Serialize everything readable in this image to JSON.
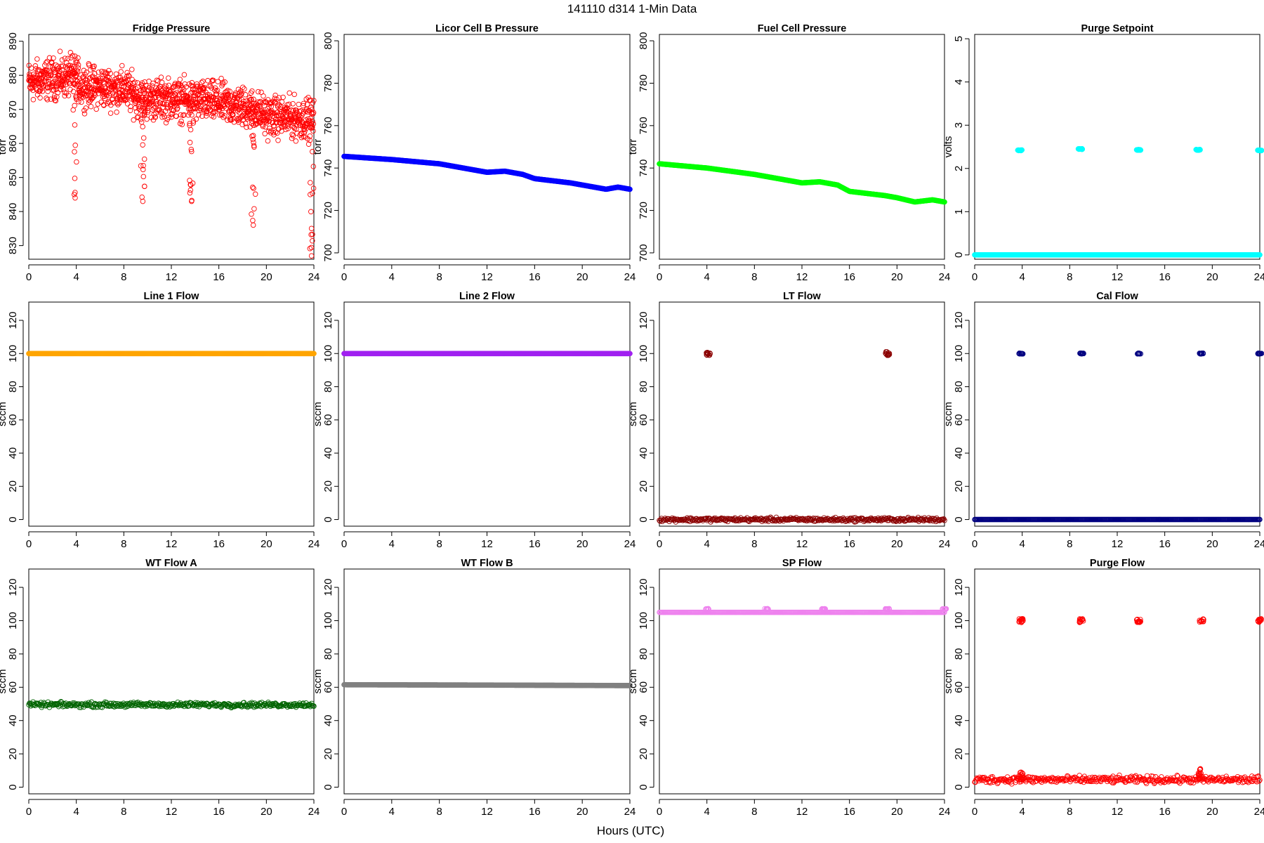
{
  "figure": {
    "title": "141110    d314    1-Min Data",
    "xlabel": "Hours (UTC)"
  },
  "chart_data": [
    {
      "type": "scatter",
      "title": "Fridge Pressure",
      "ylabel": "torr",
      "color": "#ff0000",
      "marker": "open-circle",
      "xlim": [
        0,
        24
      ],
      "xticks": [
        0,
        4,
        8,
        12,
        16,
        20,
        24
      ],
      "ylim": [
        826,
        892
      ],
      "yticks": [
        830,
        840,
        850,
        860,
        870,
        880,
        890
      ],
      "series": [
        {
          "pattern": "noise",
          "x": [
            0,
            4,
            4.3,
            8,
            9.5,
            12,
            16,
            19,
            20,
            24
          ],
          "y": [
            878,
            880,
            877,
            876,
            873,
            873,
            872,
            870,
            868,
            867
          ],
          "spread": 5,
          "dips": [
            {
              "x": 3.9,
              "y": 844
            },
            {
              "x": 9.6,
              "y": 843
            },
            {
              "x": 13.7,
              "y": 843
            },
            {
              "x": 18.9,
              "y": 836
            },
            {
              "x": 23.8,
              "y": 827
            }
          ]
        }
      ]
    },
    {
      "type": "scatter",
      "title": "Licor Cell B Pressure",
      "ylabel": "torr",
      "color": "#0000ff",
      "marker": "filled-circle",
      "xlim": [
        0,
        24
      ],
      "xticks": [
        0,
        4,
        8,
        12,
        16,
        20,
        24
      ],
      "ylim": [
        697,
        803
      ],
      "yticks": [
        700,
        720,
        740,
        760,
        780,
        800
      ],
      "series": [
        {
          "pattern": "line",
          "x": [
            0,
            4,
            8,
            10,
            12,
            13.5,
            15,
            16,
            17.5,
            19,
            20,
            22,
            23,
            24
          ],
          "y": [
            745.5,
            744,
            742,
            740,
            738,
            738.5,
            737,
            735,
            734,
            733,
            732,
            730,
            731,
            730
          ]
        }
      ]
    },
    {
      "type": "scatter",
      "title": "Fuel Cell Pressure",
      "ylabel": "torr",
      "color": "#00ff00",
      "marker": "filled-circle",
      "xlim": [
        0,
        24
      ],
      "xticks": [
        0,
        4,
        8,
        12,
        16,
        20,
        24
      ],
      "ylim": [
        697,
        803
      ],
      "yticks": [
        700,
        720,
        740,
        760,
        780,
        800
      ],
      "series": [
        {
          "pattern": "line",
          "x": [
            0,
            4,
            8,
            10,
            12,
            13.5,
            15,
            16,
            17.5,
            19,
            20,
            21.5,
            23,
            24
          ],
          "y": [
            742,
            740,
            737,
            735,
            733,
            733.5,
            732,
            729,
            728,
            727,
            726,
            724,
            725,
            724
          ]
        }
      ]
    },
    {
      "type": "scatter",
      "title": "Purge Setpoint",
      "ylabel": "volts",
      "color": "#00ffff",
      "marker": "filled-circle",
      "xlim": [
        0,
        24
      ],
      "xticks": [
        0,
        4,
        8,
        12,
        16,
        20,
        24
      ],
      "ylim": [
        -0.1,
        5.1
      ],
      "yticks": [
        0,
        1,
        2,
        3,
        4,
        5
      ],
      "series": [
        {
          "pattern": "flat",
          "x": [
            0,
            24
          ],
          "y": [
            0,
            0
          ],
          "clusters": [
            {
              "x": 3.8,
              "y": 2.42
            },
            {
              "x": 8.9,
              "y": 2.45
            },
            {
              "x": 13.8,
              "y": 2.43
            },
            {
              "x": 18.8,
              "y": 2.43
            },
            {
              "x": 24.0,
              "y": 2.42
            }
          ]
        }
      ]
    },
    {
      "type": "scatter",
      "title": "Line 1 Flow",
      "ylabel": "sccm",
      "color": "#ffa500",
      "marker": "filled-circle",
      "xlim": [
        0,
        24
      ],
      "xticks": [
        0,
        4,
        8,
        12,
        16,
        20,
        24
      ],
      "ylim": [
        -4,
        131
      ],
      "yticks": [
        0,
        20,
        40,
        60,
        80,
        100,
        120
      ],
      "series": [
        {
          "pattern": "flat",
          "x": [
            0,
            24
          ],
          "y": [
            100,
            100
          ]
        }
      ]
    },
    {
      "type": "scatter",
      "title": "Line 2 Flow",
      "ylabel": "sccm",
      "color": "#a020f0",
      "marker": "filled-circle",
      "xlim": [
        0,
        24
      ],
      "xticks": [
        0,
        4,
        8,
        12,
        16,
        20,
        24
      ],
      "ylim": [
        -4,
        131
      ],
      "yticks": [
        0,
        20,
        40,
        60,
        80,
        100,
        120
      ],
      "series": [
        {
          "pattern": "flat",
          "x": [
            0,
            24
          ],
          "y": [
            100,
            100
          ]
        }
      ]
    },
    {
      "type": "scatter",
      "title": "LT Flow",
      "ylabel": "sccm",
      "color": "#8b0000",
      "marker": "open-circle",
      "xlim": [
        0,
        24
      ],
      "xticks": [
        0,
        4,
        8,
        12,
        16,
        20,
        24
      ],
      "ylim": [
        -4,
        131
      ],
      "yticks": [
        0,
        20,
        40,
        60,
        80,
        100,
        120
      ],
      "series": [
        {
          "pattern": "flat",
          "x": [
            0,
            24
          ],
          "y": [
            0,
            0
          ],
          "spread": 1,
          "clusters": [
            {
              "x": 4.1,
              "y": 100
            },
            {
              "x": 19.2,
              "y": 100
            }
          ]
        }
      ]
    },
    {
      "type": "scatter",
      "title": "Cal Flow",
      "ylabel": "sccm",
      "color": "#000080",
      "marker": "open-circle",
      "xlim": [
        0,
        24
      ],
      "xticks": [
        0,
        4,
        8,
        12,
        16,
        20,
        24
      ],
      "ylim": [
        -4,
        131
      ],
      "yticks": [
        0,
        20,
        40,
        60,
        80,
        100,
        120
      ],
      "series": [
        {
          "pattern": "flat",
          "x": [
            0,
            24
          ],
          "y": [
            0,
            0
          ],
          "clusters": [
            {
              "x": 3.9,
              "y": 100
            },
            {
              "x": 9.0,
              "y": 100
            },
            {
              "x": 13.8,
              "y": 100
            },
            {
              "x": 19.1,
              "y": 100
            },
            {
              "x": 24.0,
              "y": 100
            }
          ]
        }
      ]
    },
    {
      "type": "scatter",
      "title": "WT Flow A",
      "ylabel": "sccm",
      "color": "#006400",
      "marker": "open-circle",
      "xlim": [
        0,
        24
      ],
      "xticks": [
        0,
        4,
        8,
        12,
        16,
        20,
        24
      ],
      "ylim": [
        -4,
        131
      ],
      "yticks": [
        0,
        20,
        40,
        60,
        80,
        100,
        120
      ],
      "series": [
        {
          "pattern": "flat",
          "x": [
            0,
            24
          ],
          "y": [
            49.5,
            49.5
          ],
          "spread": 1.2
        }
      ]
    },
    {
      "type": "scatter",
      "title": "WT Flow B",
      "ylabel": "sccm",
      "color": "#808080",
      "marker": "filled-circle",
      "xlim": [
        0,
        24
      ],
      "xticks": [
        0,
        4,
        8,
        12,
        16,
        20,
        24
      ],
      "ylim": [
        -4,
        131
      ],
      "yticks": [
        0,
        20,
        40,
        60,
        80,
        100,
        120
      ],
      "series": [
        {
          "pattern": "line",
          "x": [
            0,
            12,
            24
          ],
          "y": [
            61.5,
            61.3,
            61
          ]
        }
      ]
    },
    {
      "type": "scatter",
      "title": "SP Flow",
      "ylabel": "sccm",
      "color": "#ee82ee",
      "marker": "open-circle",
      "xlim": [
        0,
        24
      ],
      "xticks": [
        0,
        4,
        8,
        12,
        16,
        20,
        24
      ],
      "ylim": [
        -4,
        131
      ],
      "yticks": [
        0,
        20,
        40,
        60,
        80,
        100,
        120
      ],
      "series": [
        {
          "pattern": "flat",
          "x": [
            0,
            24
          ],
          "y": [
            105,
            105
          ],
          "clusters": [
            {
              "x": 4.0,
              "y": 107
            },
            {
              "x": 9.0,
              "y": 107
            },
            {
              "x": 13.8,
              "y": 107
            },
            {
              "x": 19.2,
              "y": 107
            },
            {
              "x": 24.0,
              "y": 107
            }
          ]
        }
      ]
    },
    {
      "type": "scatter",
      "title": "Purge Flow",
      "ylabel": "sccm",
      "color": "#ff0000",
      "marker": "open-circle",
      "xlim": [
        0,
        24
      ],
      "xticks": [
        0,
        4,
        8,
        12,
        16,
        20,
        24
      ],
      "ylim": [
        -4,
        131
      ],
      "yticks": [
        0,
        20,
        40,
        60,
        80,
        100,
        120
      ],
      "series": [
        {
          "pattern": "flat",
          "x": [
            0,
            24
          ],
          "y": [
            4.5,
            4.5
          ],
          "spread": 1.8,
          "clusters": [
            {
              "x": 3.9,
              "y": 100
            },
            {
              "x": 9.0,
              "y": 100
            },
            {
              "x": 13.8,
              "y": 100
            },
            {
              "x": 19.1,
              "y": 100
            },
            {
              "x": 24.0,
              "y": 100
            }
          ],
          "dips": [
            {
              "x": 3.9,
              "y": 9
            },
            {
              "x": 19.0,
              "y": 11
            }
          ]
        }
      ]
    }
  ]
}
